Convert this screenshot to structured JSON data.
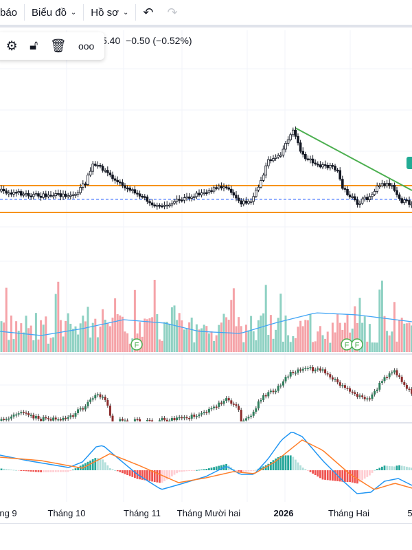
{
  "toolbar": {
    "alerts_partial": "báo",
    "chart_label": "Biểu đồ",
    "profile_label": "Hồ sơ"
  },
  "floating_toolbar": {
    "settings": "settings-icon",
    "lock": "unlock-icon",
    "delete": "trash-icon",
    "more": "more-icon"
  },
  "legend": {
    "price_partial": "5.40",
    "change": "−0.50",
    "change_pct": "(−0.52%)"
  },
  "event_marker": "F",
  "time_axis": [
    "ng 9",
    "Tháng 10",
    "Tháng 11",
    "Tháng Mười hai",
    "2026",
    "Tháng Hai",
    "5"
  ],
  "colors": {
    "up": "#26a69a",
    "down": "#ef5350",
    "level_line": "#f7931a",
    "trend_line": "#4caf50",
    "macd": "#2196f3",
    "signal": "#ff7f2a",
    "volume_ma": "#42a5f5"
  }
}
